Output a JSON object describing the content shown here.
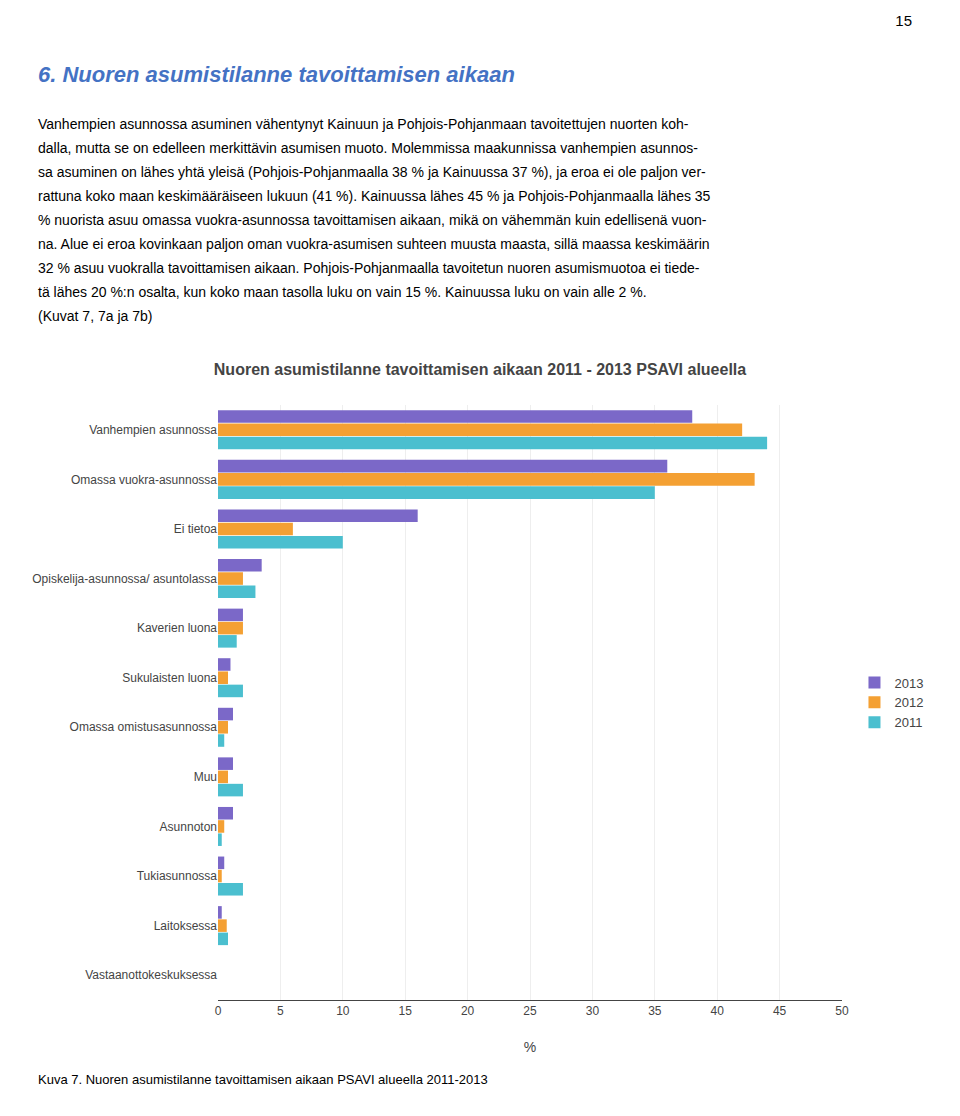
{
  "page_number": "15",
  "heading": "6.  Nuoren asumistilanne tavoittamisen aikaan",
  "body_lines": [
    "Vanhempien asunnossa asuminen vähentynyt Kainuun ja Pohjois-Pohjanmaan tavoitettujen nuorten koh-",
    "dalla, mutta se on edelleen merkittävin asumisen muoto. Molemmissa maakunnissa vanhempien asunnos-",
    "sa asuminen on lähes yhtä yleisä (Pohjois-Pohjanmaalla 38 % ja Kainuussa 37 %), ja eroa ei ole paljon ver-",
    "rattuna koko maan keskimääräiseen lukuun (41 %). Kainuussa lähes 45 % ja Pohjois-Pohjanmaalla lähes 35",
    "% nuorista asuu omassa vuokra-asunnossa tavoittamisen aikaan, mikä on vähemmän kuin edellisenä vuon-",
    "na. Alue ei eroa kovinkaan paljon oman vuokra-asumisen suhteen muusta maasta, sillä maassa keskimäärin",
    "32 % asuu vuokralla tavoittamisen aikaan. Pohjois-Pohjanmaalla tavoitetun nuoren asumismuotoa ei tiede-",
    "tä lähes 20 %:n osalta, kun koko maan tasolla luku on vain 15 %. Kainuussa luku on vain alle 2 %.",
    "(Kuvat 7, 7a ja 7b)"
  ],
  "caption": "Kuva 7. Nuoren asumistilanne tavoittamisen aikaan PSAVI alueella 2011-2013",
  "chart_data": {
    "type": "bar",
    "orientation": "horizontal",
    "title": "Nuoren asumistilanne tavoittamisen aikaan 2011 - 2013 PSAVI alueella",
    "xlabel": "%",
    "categories": [
      "Vanhempien asunnossa",
      "Omassa vuokra-asunnossa",
      "Ei tietoa",
      "Opiskelija-asunnossa/ asuntolassa",
      "Kaverien luona",
      "Sukulaisten luona",
      "Omassa omistusasunnossa",
      "Muu",
      "Asunnoton",
      "Tukiasunnossa",
      "Laitoksessa",
      "Vastaanottokeskuksessa"
    ],
    "series": [
      {
        "name": "2013",
        "color": "#7B68C8",
        "values": [
          38,
          36,
          16,
          3.5,
          2.0,
          1.0,
          1.2,
          1.2,
          1.2,
          0.5,
          0.3,
          0.0
        ]
      },
      {
        "name": "2012",
        "color": "#F4A033",
        "values": [
          42,
          43,
          6,
          2.0,
          2.0,
          0.8,
          0.8,
          0.8,
          0.5,
          0.3,
          0.7,
          0.0
        ]
      },
      {
        "name": "2011",
        "color": "#4BBFCF",
        "values": [
          44,
          35,
          10,
          3.0,
          1.5,
          2.0,
          0.5,
          2.0,
          0.3,
          2.0,
          0.8,
          0.0
        ]
      }
    ],
    "xlim": [
      0,
      50
    ],
    "xticks": [
      0,
      5,
      10,
      15,
      20,
      25,
      30,
      35,
      40,
      45,
      50
    ],
    "grid": true,
    "legend": "right"
  }
}
